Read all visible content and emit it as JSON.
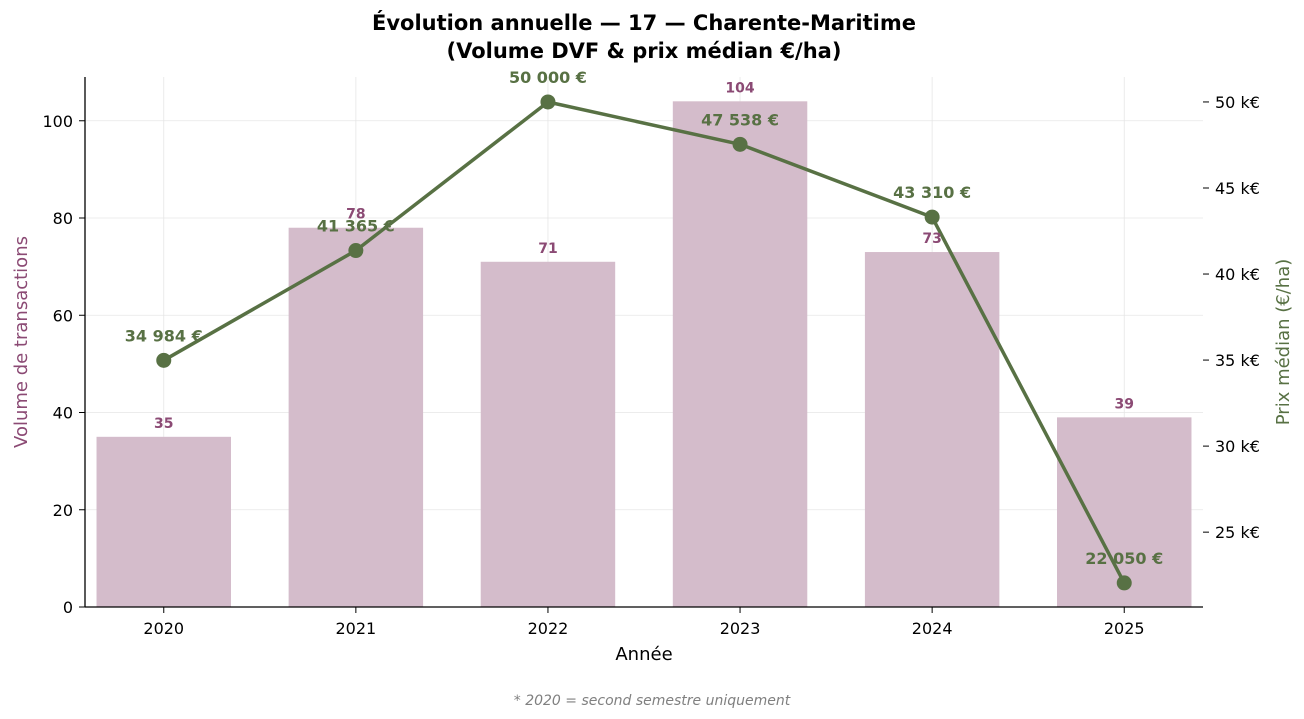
{
  "chart_data": {
    "type": "bar",
    "title_line1": "Évolution annuelle — 17 — Charente-Maritime",
    "title_line2": "(Volume DVF & prix médian €/ha)",
    "xlabel": "Année",
    "ylabel_left": "Volume de transactions",
    "ylabel_right": "Prix médian (€/ha)",
    "footnote": "* 2020 = second semestre uniquement",
    "categories": [
      "2020",
      "2021",
      "2022",
      "2023",
      "2024",
      "2025"
    ],
    "volume": {
      "values": [
        35,
        78,
        71,
        104,
        73,
        39
      ],
      "labels": [
        "35",
        "78",
        "71",
        "104",
        "73",
        "39"
      ],
      "color": "#d4bccb",
      "label_color": "#8b4a74"
    },
    "price": {
      "values": [
        34984,
        41365,
        50000,
        47538,
        43310,
        22050
      ],
      "labels": [
        "34 984 €",
        "41 365 €",
        "50 000 €",
        "47 538 €",
        "43 310 €",
        "22 050 €"
      ],
      "color": "#587144"
    },
    "y_left_range": [
      0,
      109
    ],
    "y_left_ticks": [
      0,
      20,
      40,
      60,
      80,
      100
    ],
    "y_left_tick_labels": [
      "0",
      "20",
      "40",
      "60",
      "80",
      "100"
    ],
    "y_right_range": [
      20650,
      51450
    ],
    "y_right_ticks": [
      25000,
      30000,
      35000,
      40000,
      45000,
      50000
    ],
    "y_right_tick_labels": [
      "25 k€",
      "30 k€",
      "35 k€",
      "40 k€",
      "45 k€",
      "50 k€"
    ],
    "grid": true
  }
}
